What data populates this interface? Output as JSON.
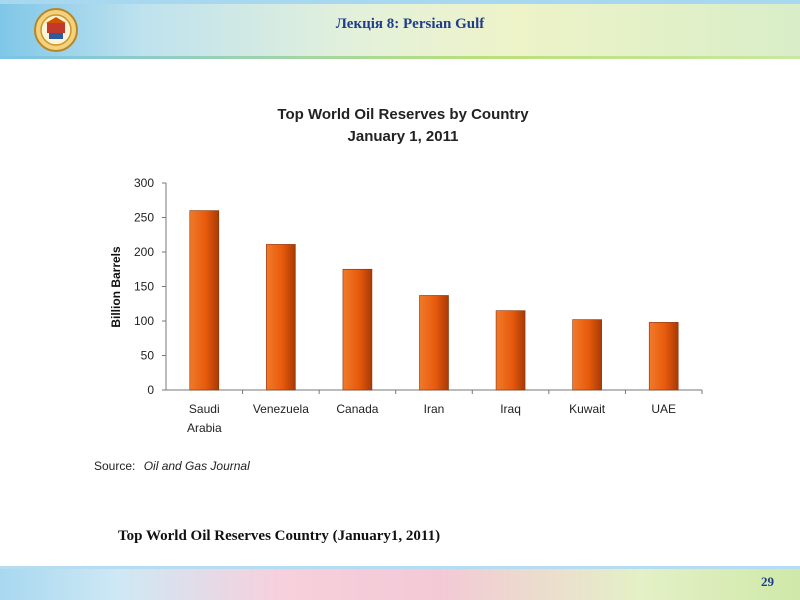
{
  "header": {
    "title": "Лекція 8: Persian Gulf",
    "logo_icon": "university-crest-icon"
  },
  "chart_data": {
    "type": "bar",
    "title": "Top World Oil Reserves by Country",
    "subtitle": "January 1, 2011",
    "ylabel": "Billion Barrels",
    "xlabel": "",
    "categories": [
      [
        "Saudi",
        "Arabia"
      ],
      [
        "Venezuela"
      ],
      [
        "Canada"
      ],
      [
        "Iran"
      ],
      [
        "Iraq"
      ],
      [
        "Kuwait"
      ],
      [
        "UAE"
      ]
    ],
    "values": [
      260,
      211,
      175,
      137,
      115,
      102,
      98
    ],
    "ylim": [
      0,
      300
    ],
    "yticks": [
      0,
      50,
      100,
      150,
      200,
      250,
      300
    ],
    "grid": false,
    "bar_color": "#e85a0c",
    "source_label": "Source:",
    "source_name": "Oil and Gas Journal"
  },
  "caption": "Top  World  Oil  Reserves Country  (January1,  2011)",
  "footer": {
    "page_number": "29"
  }
}
